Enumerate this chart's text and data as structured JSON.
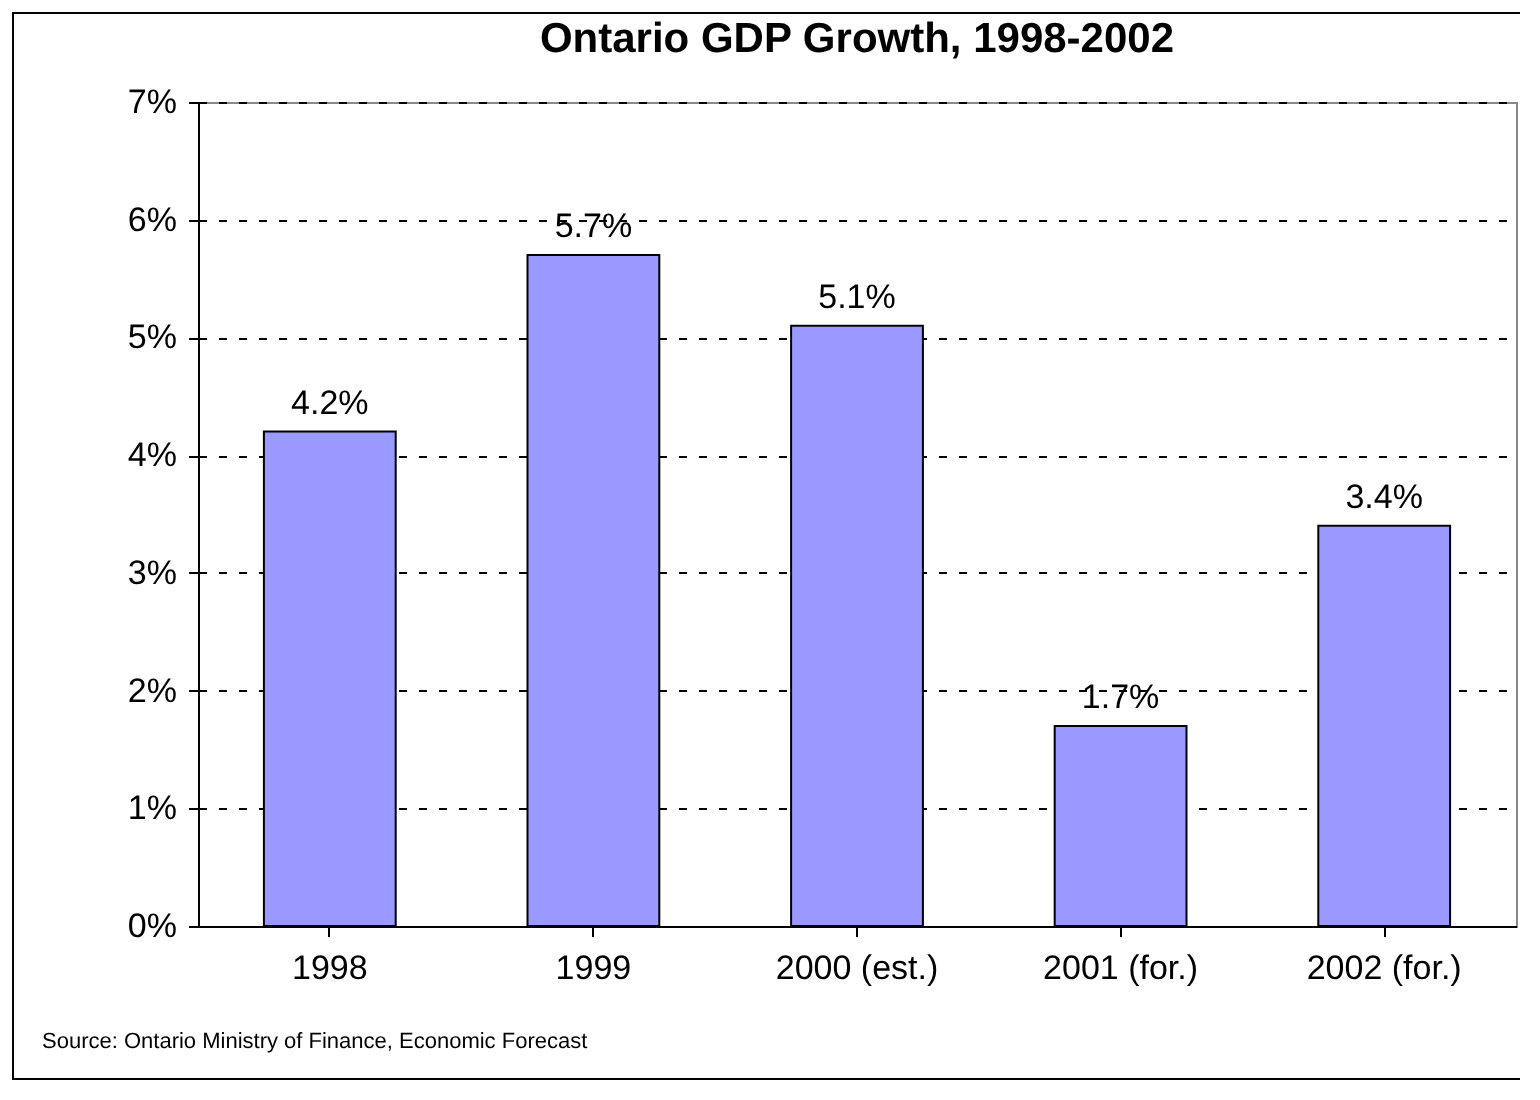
{
  "chart_data": {
    "type": "bar",
    "title": "Ontario GDP Growth, 1998-2002",
    "categories": [
      "1998",
      "1999",
      "2000 (est.)",
      "2001 (for.)",
      "2002 (for.)"
    ],
    "values": [
      4.2,
      5.7,
      5.1,
      1.7,
      3.4
    ],
    "value_labels": [
      "4.2%",
      "5.7%",
      "5.1%",
      "1.7%",
      "3.4%"
    ],
    "color": "#9999ff",
    "ylim": [
      0,
      7
    ],
    "yticks": [
      {
        "value": 0,
        "label": "0%"
      },
      {
        "value": 1,
        "label": "1%"
      },
      {
        "value": 2,
        "label": "2%"
      },
      {
        "value": 3,
        "label": "3%"
      },
      {
        "value": 4,
        "label": "4%"
      },
      {
        "value": 5,
        "label": "5%"
      },
      {
        "value": 6,
        "label": "6%"
      },
      {
        "value": 7,
        "label": "7%"
      }
    ],
    "grid": "y",
    "annotations": [
      "Source: Ontario Ministry of Finance, Economic Forecast"
    ]
  }
}
